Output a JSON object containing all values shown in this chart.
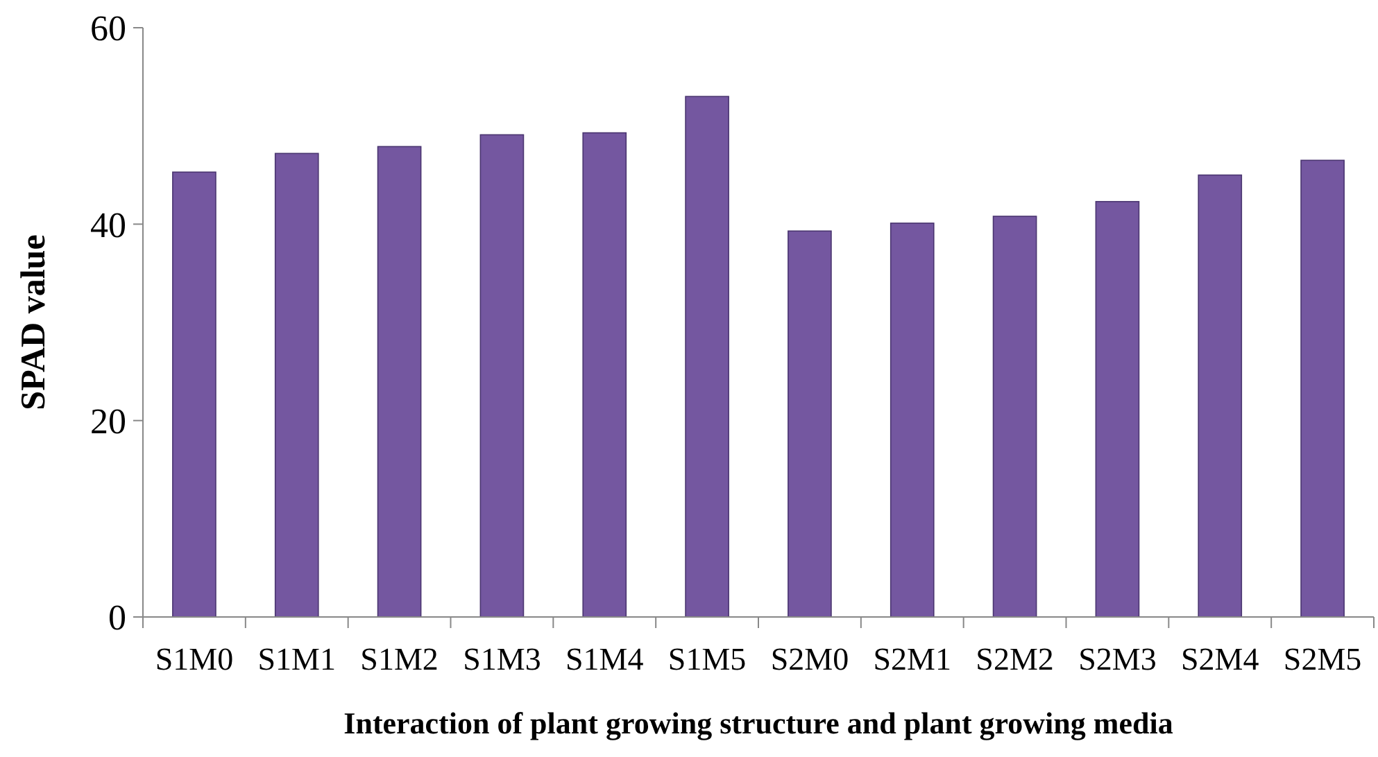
{
  "chart_data": {
    "type": "bar",
    "xlabel": "Interaction of plant growing structure and plant growing media",
    "ylabel": "SPAD value",
    "categories": [
      "S1M0",
      "S1M1",
      "S1M2",
      "S1M3",
      "S1M4",
      "S1M5",
      "S2M0",
      "S2M1",
      "S2M2",
      "S2M3",
      "S2M4",
      "S2M5"
    ],
    "values": [
      45.3,
      47.2,
      47.9,
      49.1,
      49.3,
      53.0,
      39.3,
      40.1,
      40.8,
      42.3,
      45.0,
      46.5
    ],
    "color": "#7457a0",
    "ylim": [
      0,
      60
    ],
    "yticks": [
      0,
      20,
      40,
      60
    ],
    "grid": false
  }
}
